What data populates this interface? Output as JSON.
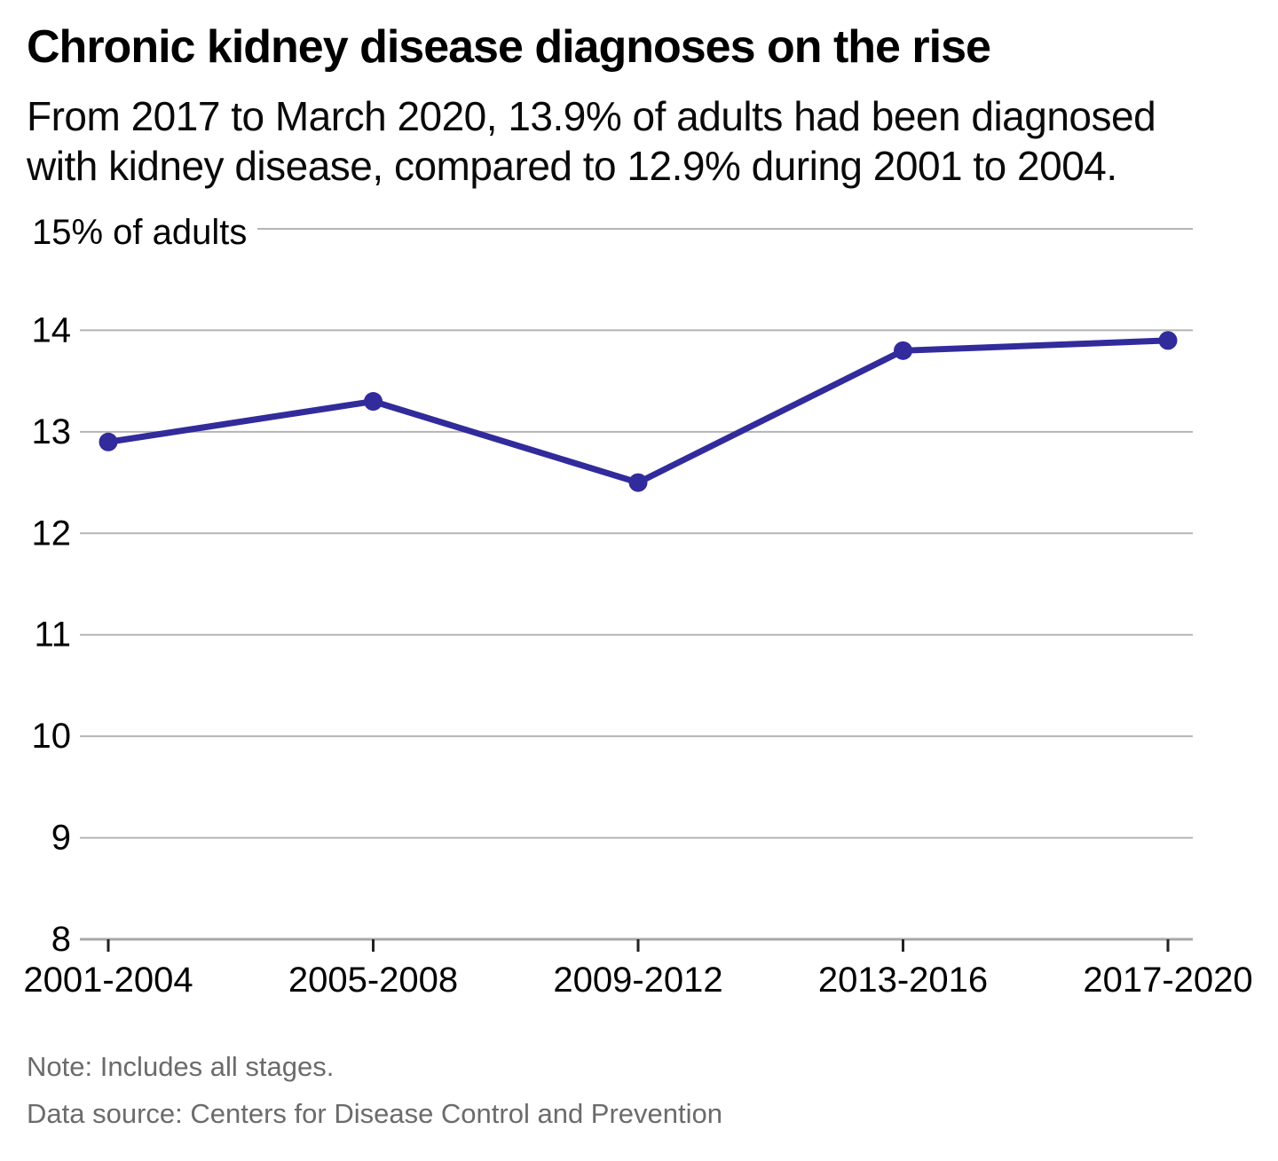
{
  "header": {
    "title": "Chronic kidney disease diagnoses on the rise",
    "subtitle": "From 2017 to March 2020, 13.9% of adults had been diagnosed with kidney disease, compared to 12.9% during 2001 to 2004."
  },
  "chart_data": {
    "type": "line",
    "title": "Chronic kidney disease diagnoses on the rise",
    "categories": [
      "2001-2004",
      "2005-2008",
      "2009-2012",
      "2013-2016",
      "2017-2020"
    ],
    "values": [
      12.9,
      13.3,
      12.5,
      13.8,
      13.9
    ],
    "xlabel": "",
    "ylabel": "% of adults",
    "ylim": [
      8,
      15
    ],
    "y_ticks": [
      8,
      9,
      10,
      11,
      12,
      13,
      14,
      15
    ],
    "y_top_tick_label": "15% of adults",
    "grid": true,
    "legend": "none",
    "line_color": "#312b9c",
    "marker_color": "#312b9c",
    "grid_color": "#b5b5b5",
    "axis_color": "#a8a8a8",
    "tick_mark_color": "#222222",
    "label_color": "#000000"
  },
  "footer": {
    "note": "Note: Includes all stages.",
    "source": "Data source: Centers for Disease Control and Prevention"
  }
}
